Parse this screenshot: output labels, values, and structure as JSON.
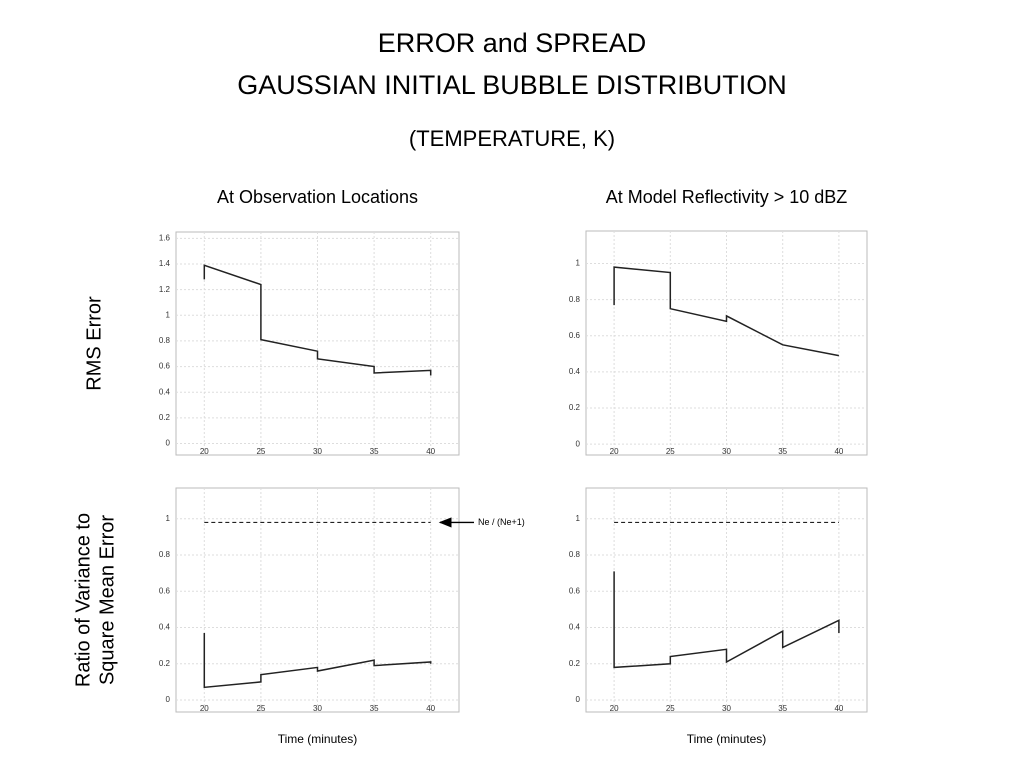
{
  "title": [
    "ERROR and SPREAD",
    "GAUSSIAN INITIAL BUBBLE DISTRIBUTION"
  ],
  "subtitle": "(TEMPERATURE, K)",
  "chart_data": [
    {
      "type": "line",
      "title": "At Observation Locations",
      "ylabel": [
        "RMS Error"
      ],
      "color": "#222",
      "grid": true,
      "x": [
        20,
        20,
        25,
        25,
        30,
        30,
        35,
        35,
        40,
        40
      ],
      "values": [
        1.28,
        1.39,
        1.24,
        0.81,
        0.72,
        0.66,
        0.6,
        0.55,
        0.57,
        0.53
      ],
      "xlim": [
        17.5,
        42.5
      ],
      "ylim": [
        -0.09,
        1.65
      ],
      "xticks": [
        20,
        25,
        30,
        35,
        40
      ],
      "yticks": [
        0,
        0.2,
        0.4,
        0.6,
        0.8,
        1,
        1.2,
        1.4,
        1.6
      ]
    },
    {
      "type": "line",
      "title": "At Model Reflectivity > 10 dBZ",
      "color": "#222",
      "grid": true,
      "x": [
        20,
        20,
        25,
        25,
        30,
        30,
        35,
        40
      ],
      "values": [
        0.77,
        0.98,
        0.95,
        0.75,
        0.68,
        0.71,
        0.55,
        0.49
      ],
      "xlim": [
        17.5,
        42.5
      ],
      "ylim": [
        -0.06,
        1.18
      ],
      "xticks": [
        20,
        25,
        30,
        35,
        40
      ],
      "yticks": [
        0,
        0.2,
        0.4,
        0.6,
        0.8,
        1
      ]
    },
    {
      "type": "line",
      "ylabel": [
        "Ratio of Variance to",
        "Square Mean Error"
      ],
      "xlabel": "Time (minutes)",
      "color": "#222",
      "grid": true,
      "x": [
        20,
        20,
        25,
        25,
        30,
        30,
        35,
        35,
        40,
        40
      ],
      "values": [
        0.37,
        0.07,
        0.1,
        0.14,
        0.18,
        0.16,
        0.22,
        0.19,
        0.21,
        0.2
      ],
      "hline": {
        "value": 0.98,
        "from": 20,
        "to": 40,
        "label": "Ne / (Ne+1)"
      },
      "xlim": [
        17.5,
        42.5
      ],
      "ylim": [
        -0.066,
        1.17
      ],
      "xticks": [
        20,
        25,
        30,
        35,
        40
      ],
      "yticks": [
        0,
        0.2,
        0.4,
        0.6,
        0.8,
        1
      ]
    },
    {
      "type": "line",
      "xlabel": "Time (minutes)",
      "color": "#222",
      "grid": true,
      "x": [
        20,
        20,
        25,
        25,
        30,
        30,
        35,
        35,
        40,
        40
      ],
      "values": [
        0.71,
        0.18,
        0.2,
        0.24,
        0.28,
        0.21,
        0.38,
        0.29,
        0.44,
        0.37
      ],
      "hline": {
        "value": 0.98,
        "from": 20,
        "to": 40
      },
      "xlim": [
        17.5,
        42.5
      ],
      "ylim": [
        -0.066,
        1.17
      ],
      "xticks": [
        20,
        25,
        30,
        35,
        40
      ],
      "yticks": [
        0,
        0.2,
        0.4,
        0.6,
        0.8,
        1
      ]
    }
  ]
}
